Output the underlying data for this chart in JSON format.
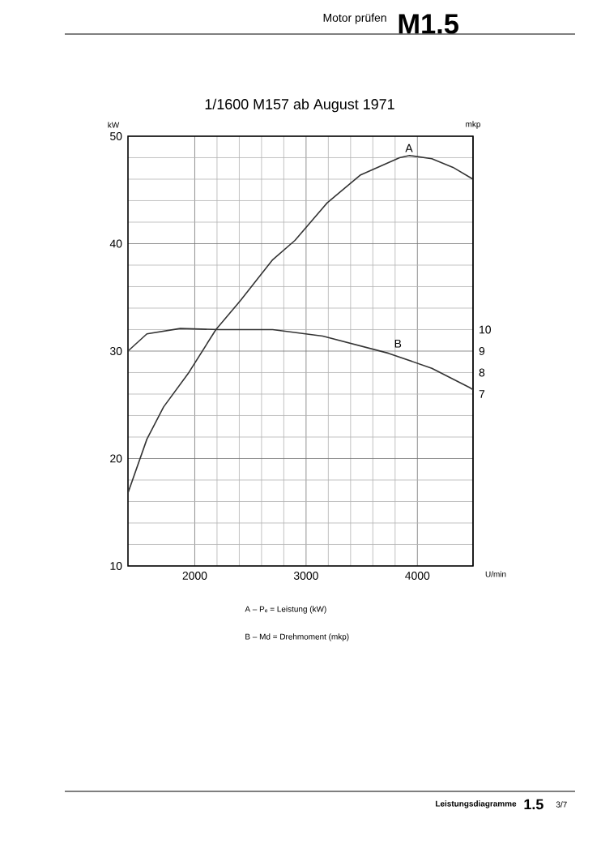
{
  "chart_data": {
    "type": "line",
    "title": "1/1600 M157 ab August 1971",
    "xlabel": "U/min",
    "ylabel": "kW",
    "y2label": "mkp",
    "xlim": [
      1400,
      4500
    ],
    "xticks": [
      2000,
      3000,
      4000
    ],
    "ylim": [
      10,
      50
    ],
    "yticks": [
      10,
      20,
      30,
      40,
      50
    ],
    "y2lim": [
      -1,
      19
    ],
    "y2ticks": [
      7,
      8,
      9,
      10
    ],
    "grid": true,
    "line_style": "solid",
    "marker": "none",
    "series": [
      {
        "name": "A",
        "color": "#333333",
        "x": [
          1400,
          1570,
          1720,
          1940,
          2190,
          2410,
          2700,
          2900,
          3190,
          3490,
          3840,
          3930,
          4130,
          4320,
          4500
        ],
        "values": [
          16.8,
          21.8,
          24.8,
          27.9,
          32,
          34.7,
          38.5,
          40.3,
          43.8,
          46.4,
          48,
          48.2,
          47.9,
          47.1,
          46
        ]
      },
      {
        "name": "B",
        "color": "#333333",
        "axis": "y2",
        "x": [
          1400,
          1570,
          1870,
          2220,
          2700,
          3150,
          3740,
          4130,
          4470,
          4500
        ],
        "values": [
          9.0,
          9.8,
          10.05,
          10.0,
          10.0,
          9.7,
          8.9,
          8.2,
          7.3,
          7.2
        ]
      }
    ],
    "annotations": [
      "Motor prüfen",
      "M1.5",
      "A – Pₑ = Leistung (kW)",
      "B – Md = Drehmoment (mkp)",
      "Leistungsdiagramme",
      "1.5",
      "3/7"
    ]
  }
}
